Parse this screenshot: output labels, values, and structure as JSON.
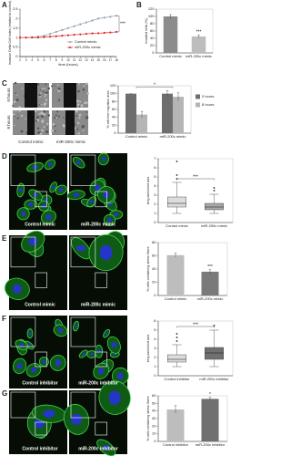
{
  "panels": [
    "A",
    "B",
    "C",
    "D",
    "E",
    "F",
    "G"
  ],
  "micrographs": {
    "C": [
      "0 hours",
      "8 hours",
      "Control mimic",
      "miR-200c mimic"
    ],
    "D": [
      "Control mimic",
      "miR-200c mimic"
    ],
    "E": [
      "Control mimic",
      "miR-200c mimic"
    ],
    "F": [
      "Control inhibitor",
      "miR-200c inhibitor"
    ],
    "G": [
      "Control inhibitor",
      "miR-200c inhibitor"
    ]
  },
  "chart_data": [
    {
      "type": "line",
      "x_label": "time (hours)",
      "y_label": "Invasion Delta Cell Index (relative to control)",
      "x": [
        2,
        3,
        4,
        5,
        6,
        7,
        8,
        9,
        10,
        11,
        12,
        13,
        14,
        15,
        16,
        17,
        18
      ],
      "xlim": [
        2,
        18
      ],
      "xticks": [
        2,
        3,
        4,
        5,
        6,
        7,
        8,
        9,
        10,
        11,
        12,
        13,
        14,
        15,
        16,
        17,
        18
      ],
      "ylim": [
        0,
        2.5
      ],
      "yticks": [
        0,
        0.5,
        1,
        1.5,
        2,
        2.5
      ],
      "series": [
        {
          "name": "Control mimic",
          "color": "#8fa3b3",
          "values": [
            1,
            1,
            1.02,
            1.05,
            1.1,
            1.2,
            1.3,
            1.4,
            1.5,
            1.6,
            1.7,
            1.8,
            1.9,
            2.0,
            2.05,
            2.1,
            2.15
          ]
        },
        {
          "name": "miR-200c mimic",
          "color": "#e02020",
          "values": [
            1,
            1,
            1,
            1,
            1.02,
            1.05,
            1.07,
            1.1,
            1.12,
            1.15,
            1.17,
            1.2,
            1.22,
            1.23,
            1.25,
            1.27,
            1.3
          ]
        }
      ],
      "annotation": "***"
    },
    {
      "type": "bar",
      "y_label": "Invaded cells (%)",
      "categories": [
        "Control mimic",
        "miR-200c mimic"
      ],
      "values": [
        100,
        45
      ],
      "errors": [
        5,
        4
      ],
      "colors": [
        "#8c8c8c",
        "#bdbdbd"
      ],
      "ylim": [
        0,
        120
      ],
      "yticks": [
        0,
        20,
        40,
        60,
        80,
        100,
        120
      ],
      "annotation": "***",
      "annotation_bracket": false
    },
    {
      "type": "bar",
      "y_label": "% cell-free migration area",
      "categories": [
        "Control mimic",
        "miR-200c mimic"
      ],
      "series": [
        {
          "name": "0 hours",
          "color": "#6e6e6e",
          "values": [
            100,
            100
          ],
          "errors": [
            0,
            8
          ]
        },
        {
          "name": "8 hours",
          "color": "#b5b5b5",
          "values": [
            47,
            92
          ],
          "errors": [
            8,
            10
          ]
        }
      ],
      "ylim": [
        0,
        120
      ],
      "yticks": [
        0,
        20,
        40,
        60,
        80,
        100,
        120
      ],
      "annotation": "*",
      "annotation_bracket": true
    },
    {
      "type": "box",
      "y_label": "long axis/short axis",
      "categories": [
        "Control mimic",
        "miR-200c mimic"
      ],
      "boxes": [
        {
          "low": 1.0,
          "q1": 1.7,
          "median": 2.1,
          "q3": 2.8,
          "high": 4.4,
          "outliers": [
            4.8,
            5.2,
            6.7
          ]
        },
        {
          "low": 1.0,
          "q1": 1.4,
          "median": 1.7,
          "q3": 2.1,
          "high": 3.1,
          "outliers": [
            3.5,
            3.8
          ]
        }
      ],
      "colors": [
        "#dcdcdc",
        "#a8a8a8"
      ],
      "ylim": [
        0,
        7
      ],
      "yticks": [
        0,
        1,
        2,
        3,
        4,
        5,
        6,
        7
      ],
      "annotation": "***",
      "annotation_bracket": true
    },
    {
      "type": "bar",
      "y_label": "% cells containing stress fibers",
      "categories": [
        "Control mimic",
        "miR-200c mimic"
      ],
      "values": [
        61,
        36
      ],
      "errors": [
        3,
        3
      ],
      "colors": [
        "#bdbdbd",
        "#7a7a7a"
      ],
      "ylim": [
        0,
        80
      ],
      "yticks": [
        0,
        20,
        40,
        60,
        80
      ],
      "annotation": "***",
      "annotation_bracket": false
    },
    {
      "type": "box",
      "y_label": "long axis/short axis",
      "categories": [
        "Control inhibitor",
        "miR-200c inhibitor"
      ],
      "boxes": [
        {
          "low": 1.0,
          "q1": 1.5,
          "median": 1.8,
          "q3": 2.3,
          "high": 3.4,
          "outliers": [
            3.8,
            4.2,
            4.6
          ]
        },
        {
          "low": 1.0,
          "q1": 1.8,
          "median": 2.5,
          "q3": 3.1,
          "high": 5.0,
          "outliers": [
            5.5
          ]
        }
      ],
      "colors": [
        "#dcdcdc",
        "#707070"
      ],
      "ylim": [
        0,
        6
      ],
      "yticks": [
        0,
        1,
        2,
        3,
        4,
        5,
        6
      ],
      "annotation": "***",
      "annotation_bracket": true
    },
    {
      "type": "bar",
      "y_label": "% cells containing stress fibers",
      "categories": [
        "Control inhibitor",
        "miR-200c inhibitor"
      ],
      "values": [
        42,
        56
      ],
      "errors": [
        5,
        2
      ],
      "colors": [
        "#bdbdbd",
        "#707070"
      ],
      "ylim": [
        0,
        60
      ],
      "yticks": [
        0,
        10,
        20,
        30,
        40,
        50,
        60
      ],
      "annotation": "*",
      "annotation_bracket": false
    }
  ]
}
